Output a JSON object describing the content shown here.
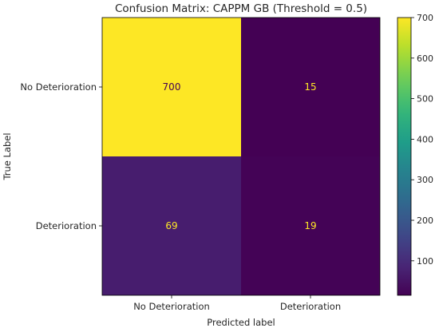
{
  "chart_data": {
    "type": "heatmap",
    "title": "Confusion Matrix: CAPPM GB (Threshold = 0.5)",
    "xlabel": "Predicted label",
    "ylabel": "True Label",
    "x_categories": [
      "No Deterioration",
      "Deterioration"
    ],
    "y_categories": [
      "No Deterioration",
      "Deterioration"
    ],
    "values": [
      [
        700,
        15
      ],
      [
        69,
        19
      ]
    ],
    "colormap": "viridis",
    "color_range": [
      15,
      700
    ],
    "colorbar_ticks": [
      100,
      200,
      300,
      400,
      500,
      600,
      700
    ],
    "cell_text_colors": {
      "on_dark": "#fde725",
      "on_light": "#440154"
    }
  }
}
